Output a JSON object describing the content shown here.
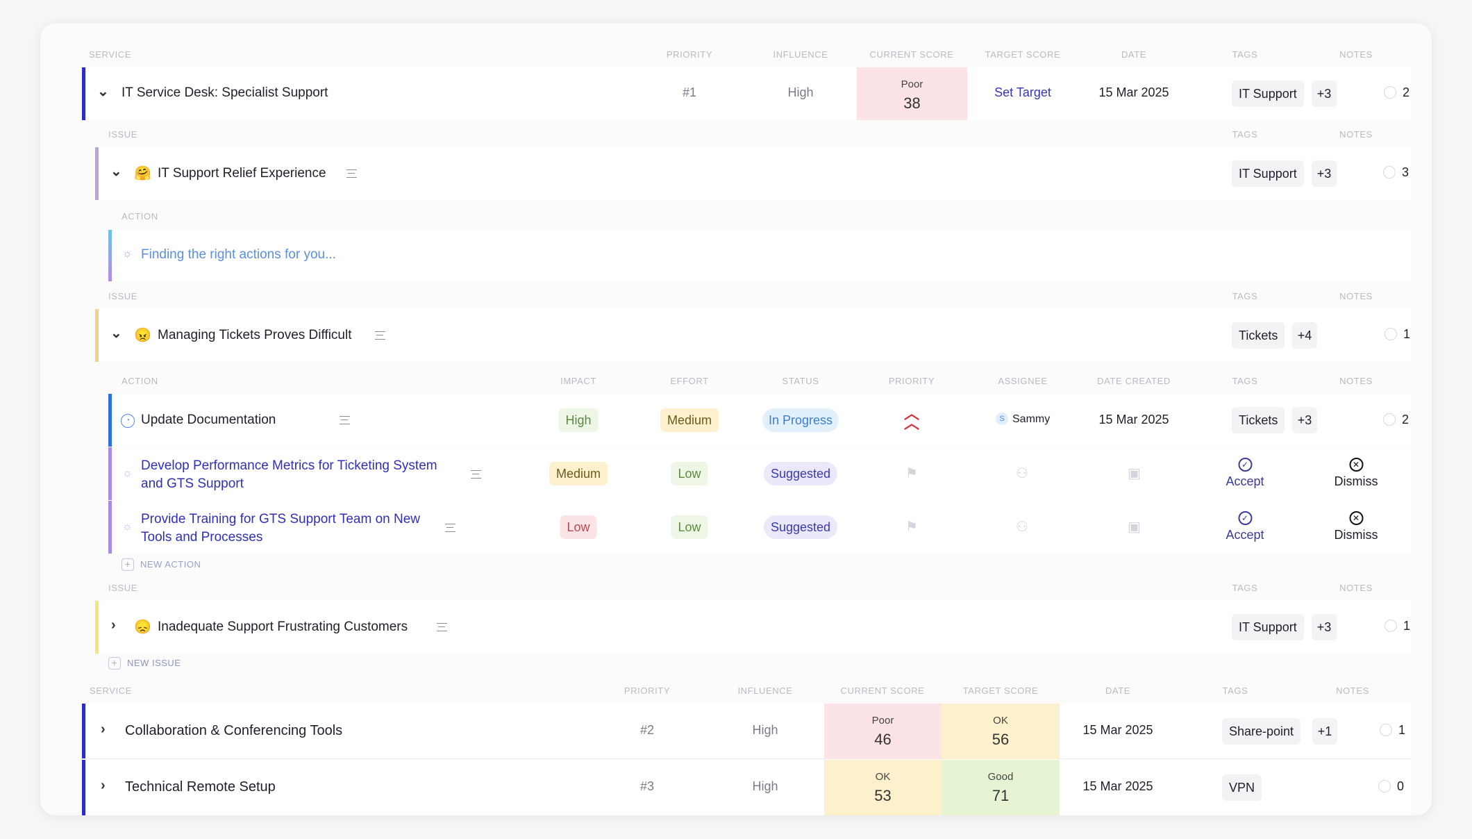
{
  "headers": {
    "service": "SERVICE",
    "priority": "PRIORITY",
    "influence": "INFLUENCE",
    "current_score": "CURRENT SCORE",
    "target_score": "TARGET SCORE",
    "date": "DATE",
    "tags": "TAGS",
    "notes": "NOTES",
    "issue": "ISSUE",
    "action": "ACTION",
    "impact": "IMPACT",
    "effort": "EFFORT",
    "status": "STATUS",
    "assignee": "ASSIGNEE",
    "date_created": "DATE CREATED"
  },
  "service1": {
    "name": "IT Service Desk: Specialist Support",
    "priority": "#1",
    "influence": "High",
    "current_label": "Poor",
    "current_value": "38",
    "target": "Set Target",
    "date": "15 Mar 2025",
    "tag": "IT Support",
    "tag_more": "+3",
    "notes": "2"
  },
  "issue1": {
    "emoji": "🤗",
    "name": "IT Support Relief Experience",
    "tag": "IT Support",
    "tag_more": "+3",
    "notes": "3"
  },
  "finding": "Finding the right actions for you...",
  "issue2": {
    "emoji": "😠",
    "name": "Managing Tickets Proves Difficult",
    "tag": "Tickets",
    "tag_more": "+4",
    "notes": "1"
  },
  "actions": [
    {
      "name": "Update Documentation",
      "impact": "High",
      "effort": "Medium",
      "status": "In Progress",
      "assignee_initial": "S",
      "assignee": "Sammy",
      "date": "15 Mar 2025",
      "tag": "Tickets",
      "tag_more": "+3",
      "notes": "2"
    },
    {
      "name_line1": "Develop Performance Metrics for Ticketing System",
      "name_line2": "and GTS Support",
      "impact": "Medium",
      "effort": "Low",
      "status": "Suggested"
    },
    {
      "name_line1": "Provide Training for GTS Support Team on New",
      "name_line2": "Tools and Processes",
      "impact": "Low",
      "effort": "Low",
      "status": "Suggested"
    }
  ],
  "accept_label": "Accept",
  "dismiss_label": "Dismiss",
  "new_action": "NEW ACTION",
  "issue3": {
    "emoji": "😞",
    "name": "Inadequate Support Frustrating Customers",
    "tag": "IT Support",
    "tag_more": "+3",
    "notes": "1"
  },
  "new_issue": "NEW ISSUE",
  "service2": {
    "name": "Collaboration & Conferencing Tools",
    "priority": "#2",
    "influence": "High",
    "current_label": "Poor",
    "current_value": "46",
    "target_label": "OK",
    "target_value": "56",
    "date": "15 Mar 2025",
    "tag": "Share-point",
    "tag_more": "+1",
    "notes": "1"
  },
  "service3": {
    "name": "Technical Remote Setup",
    "priority": "#3",
    "influence": "High",
    "current_label": "OK",
    "current_value": "53",
    "target_label": "Good",
    "target_value": "71",
    "date": "15 Mar 2025",
    "tag": "VPN",
    "notes": "0"
  },
  "colors": {
    "service_bar": "#2c2cc8",
    "issue1_bar": "#b9a2e0",
    "issue2_bar": "#f6cf8c",
    "issue3_bar": "#f7e27c",
    "action_bar": "#2b6fdc",
    "suggested_bar": "#a98be4",
    "poor": "#fce3e6",
    "ok": "#fcf1cc",
    "good": "#e6f4d3"
  }
}
